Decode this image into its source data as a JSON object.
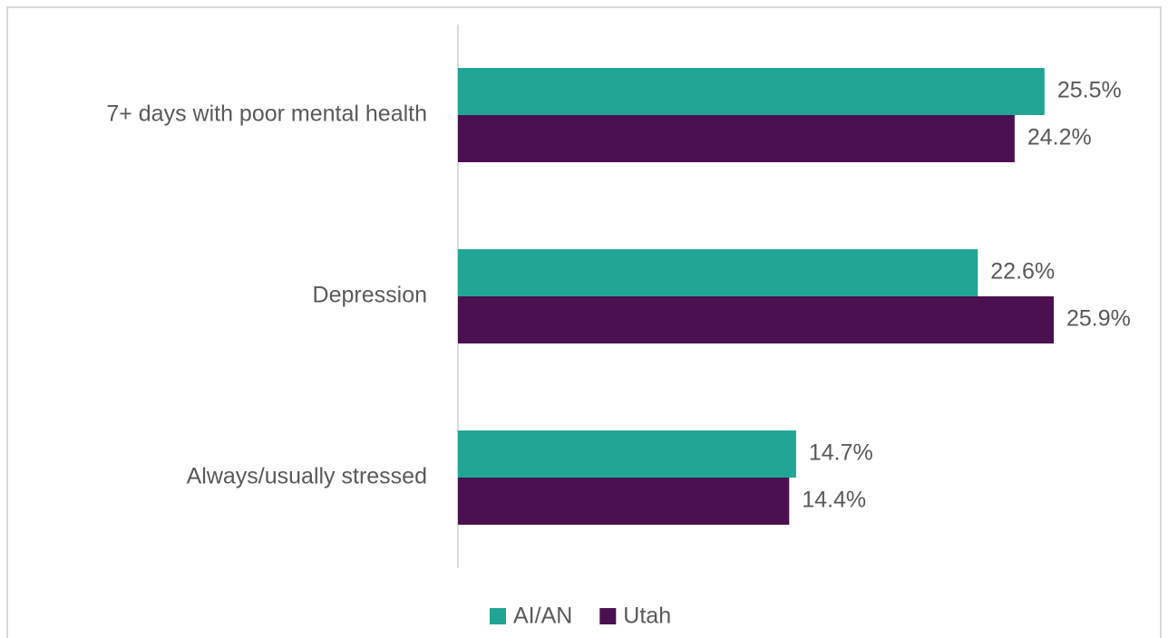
{
  "chart_data": {
    "type": "bar",
    "orientation": "horizontal",
    "categories": [
      "7+ days with poor mental health",
      "Depression",
      "Always/usually stressed"
    ],
    "series": [
      {
        "name": "AI/AN",
        "color": "#21a695",
        "values": [
          25.5,
          22.6,
          14.7
        ],
        "value_labels": [
          "25.5%",
          "22.6%",
          "14.7%"
        ]
      },
      {
        "name": "Utah",
        "color": "#4b1050",
        "values": [
          24.2,
          25.9,
          14.4
        ],
        "value_labels": [
          "24.2%",
          "25.9%",
          "14.4%"
        ]
      }
    ],
    "xlim": [
      0,
      30
    ],
    "legend": "bottom"
  }
}
